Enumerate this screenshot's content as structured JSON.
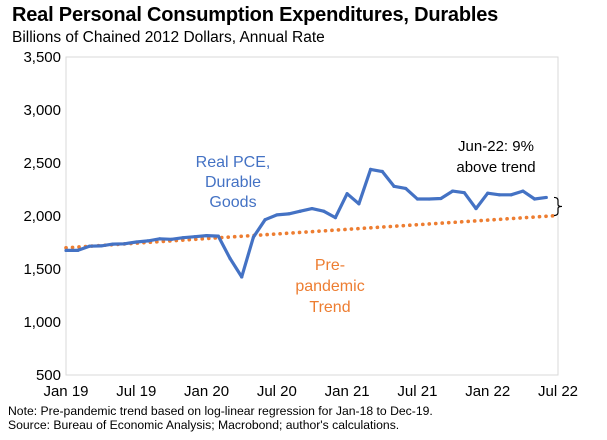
{
  "chart_data": {
    "type": "line",
    "title": "Real Personal Consumption Expenditures, Durables",
    "subtitle": "Billions of Chained 2012 Dollars, Annual Rate",
    "xlabel": "",
    "ylabel": "",
    "ylim": [
      500,
      3500
    ],
    "yticks": [
      500,
      1000,
      1500,
      2000,
      2500,
      3000,
      3500
    ],
    "ytick_labels": [
      "500",
      "1,000",
      "1,500",
      "2,000",
      "2,500",
      "3,000",
      "3,500"
    ],
    "xticks": [
      0,
      6,
      12,
      18,
      24,
      30,
      36,
      42
    ],
    "xtick_labels": [
      "Jan 19",
      "Jul 19",
      "Jan 20",
      "Jul 20",
      "Jan 21",
      "Jul 21",
      "Jan 22",
      "Jul 22"
    ],
    "xlim": [
      0,
      42
    ],
    "grid": false,
    "series": [
      {
        "name": "Real PCE, Durable Goods",
        "label_lines": [
          "Real PCE,",
          "Durable",
          "Goods"
        ],
        "color": "#4472C4",
        "style": "solid",
        "x": [
          0,
          1,
          2,
          3,
          4,
          5,
          6,
          7,
          8,
          9,
          10,
          11,
          12,
          13,
          14,
          15,
          16,
          17,
          18,
          19,
          20,
          21,
          22,
          23,
          24,
          25,
          26,
          27,
          28,
          29,
          30,
          31,
          32,
          33,
          34,
          35,
          36,
          37,
          38,
          39,
          40,
          41
        ],
        "values": [
          1675,
          1675,
          1715,
          1718,
          1735,
          1738,
          1755,
          1765,
          1785,
          1780,
          1795,
          1805,
          1815,
          1810,
          1600,
          1425,
          1800,
          1965,
          2010,
          2020,
          2045,
          2070,
          2045,
          1985,
          2210,
          2115,
          2440,
          2420,
          2280,
          2260,
          2160,
          2160,
          2165,
          2235,
          2220,
          2070,
          2215,
          2200,
          2200,
          2235,
          2160,
          2175
        ]
      },
      {
        "name": "Pre-pandemic Trend",
        "label_lines": [
          "Pre-",
          "pandemic",
          "Trend"
        ],
        "color": "#ED7D31",
        "style": "dotted",
        "x": [
          0,
          42
        ],
        "values": [
          1700,
          2005
        ]
      }
    ],
    "annotations": [
      {
        "lines": [
          "Jun-22: 9%",
          "above trend"
        ],
        "target_x": 42,
        "bracket": [
          2005,
          2175
        ]
      }
    ]
  },
  "notes": [
    "Note: Pre-pandemic trend based on log-linear regression for Jan-18 to Dec-19.",
    "Source: Bureau of Economic Analysis; Macrobond; author's calculations."
  ]
}
